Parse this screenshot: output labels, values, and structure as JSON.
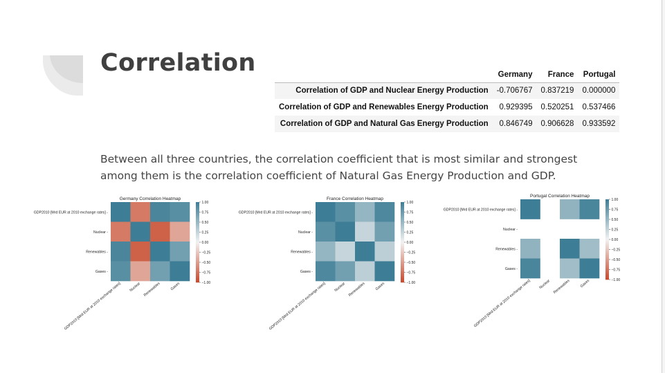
{
  "slide": {
    "title": "Correlation",
    "summary": "Between all three countries, the correlation coefficient that is most similar and strongest among them is the correlation coefficient of Natural Gas Energy Production and GDP."
  },
  "table": {
    "columns": [
      "Germany",
      "France",
      "Portugal"
    ],
    "rows": [
      {
        "label": "Correlation of GDP and Nuclear Energy Production",
        "values": [
          "-0.706767",
          "0.837219",
          "0.000000"
        ]
      },
      {
        "label": "Correlation of GDP and Renewables Energy Production",
        "values": [
          "0.929395",
          "0.520251",
          "0.537466"
        ]
      },
      {
        "label": "Correlation of GDP and Natural Gas Energy Production",
        "values": [
          "0.846749",
          "0.906628",
          "0.933592"
        ]
      }
    ]
  },
  "chart_data": [
    {
      "type": "heatmap",
      "title": "Germany Correlation Heatmap",
      "x_labels": [
        "GDP2010 [Mrd EUR at 2010 exchange rates]",
        "Nuclear",
        "Renewables",
        "Gases"
      ],
      "y_labels": [
        "GDP2010 [Mrd EUR at 2010 exchange rates]",
        "Nuclear",
        "Renewables",
        "Gases"
      ],
      "values": [
        [
          1.0,
          -0.706767,
          0.929395,
          0.846749
        ],
        [
          -0.706767,
          1.0,
          -0.85,
          -0.45
        ],
        [
          0.929395,
          -0.85,
          1.0,
          0.7
        ],
        [
          0.846749,
          -0.45,
          0.7,
          1.0
        ]
      ],
      "colorbar_ticks": [
        "1.00",
        "0.75",
        "0.50",
        "0.25",
        "0.00",
        "−0.25",
        "−0.50",
        "−0.75",
        "−1.00"
      ],
      "vmin": -1,
      "vmax": 1
    },
    {
      "type": "heatmap",
      "title": "France Correlation Heatmap",
      "x_labels": [
        "GDP2010 [Mrd EUR at 2010 exchange rates]",
        "Nuclear",
        "Renewables",
        "Gases"
      ],
      "y_labels": [
        "GDP2010 [Mrd EUR at 2010 exchange rates]",
        "Nuclear",
        "Renewables",
        "Gases"
      ],
      "values": [
        [
          1.0,
          0.837219,
          0.520251,
          0.906628
        ],
        [
          0.837219,
          1.0,
          0.25,
          0.7
        ],
        [
          0.520251,
          0.25,
          1.0,
          0.3
        ],
        [
          0.906628,
          0.7,
          0.3,
          1.0
        ]
      ],
      "colorbar_ticks": [
        "1.00",
        "0.75",
        "0.50",
        "0.25",
        "0.00",
        "−0.25",
        "−0.50",
        "−0.75",
        "−1.00"
      ],
      "vmin": -1,
      "vmax": 1
    },
    {
      "type": "heatmap",
      "title": "Portugal Correlation Heatmap",
      "x_labels": [
        "GDP2010 [Mrd EUR at 2010 exchange rates]",
        "Nuclear",
        "Renewables",
        "Gases"
      ],
      "y_labels": [
        "GDP2010 [Mrd EUR at 2010 exchange rates]",
        "Nuclear",
        "Renewables",
        "Gases"
      ],
      "values": [
        [
          1.0,
          null,
          0.537466,
          0.933592
        ],
        [
          null,
          null,
          null,
          null
        ],
        [
          0.537466,
          null,
          1.0,
          0.45
        ],
        [
          0.933592,
          null,
          0.45,
          1.0
        ]
      ],
      "colorbar_ticks": [
        "1.00",
        "0.75",
        "0.50",
        "0.25",
        "0.00",
        "−0.25",
        "−0.50",
        "−0.75",
        "−1.00"
      ],
      "vmin": -1,
      "vmax": 1
    }
  ],
  "colors": {
    "positive": "#3d7d95",
    "neutral": "#f2f2f2",
    "negative": "#c7482b",
    "deco": "#e4e4e4"
  }
}
